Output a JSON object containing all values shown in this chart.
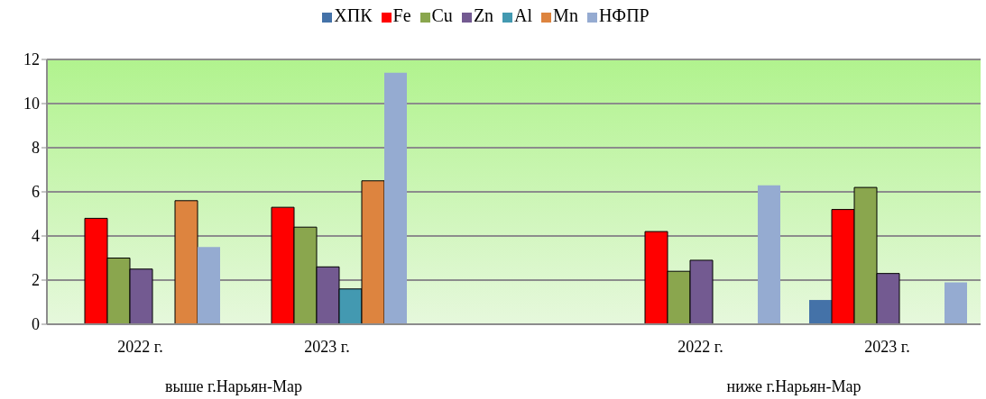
{
  "chart_data": {
    "type": "bar",
    "categories": [
      "2022 г.",
      "2023 г.",
      null,
      "2022 г.",
      "2023 г."
    ],
    "series": [
      {
        "name": "ХПК",
        "color": "#4472a8",
        "values": [
          null,
          null,
          null,
          null,
          1.1
        ]
      },
      {
        "name": "Fe",
        "color": "#ff0000",
        "values": [
          4.8,
          5.3,
          null,
          4.2,
          5.2
        ]
      },
      {
        "name": "Cu",
        "color": "#8aa64e",
        "values": [
          3.0,
          4.4,
          null,
          2.4,
          6.2
        ]
      },
      {
        "name": "Zn",
        "color": "#735a91",
        "values": [
          2.5,
          2.6,
          null,
          2.9,
          2.3
        ]
      },
      {
        "name": "Al",
        "color": "#4399b1",
        "values": [
          null,
          1.6,
          null,
          null,
          null
        ]
      },
      {
        "name": "Mn",
        "color": "#dd843f",
        "values": [
          5.6,
          6.5,
          null,
          null,
          null
        ]
      },
      {
        "name": "НФПР",
        "color": "#95abd1",
        "values": [
          3.5,
          11.4,
          null,
          6.3,
          1.9
        ]
      }
    ],
    "ylim": [
      0,
      12
    ],
    "yticks": [
      0,
      2,
      4,
      6,
      8,
      10,
      12
    ],
    "grid": "y",
    "legend": "top",
    "annotations": [
      "выше г.Нарьян-Мар",
      "ниже г.Нарьян-Мар"
    ]
  }
}
